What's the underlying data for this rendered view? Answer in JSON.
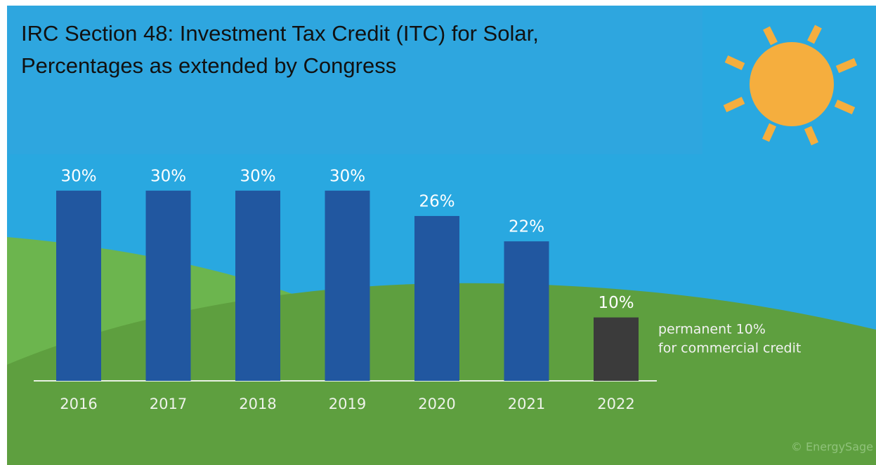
{
  "chart_data": {
    "type": "bar",
    "title": [
      "IRC Section 48: Investment Tax Credit (ITC) for Solar,",
      "Percentages as extended by Congress"
    ],
    "categories": [
      "2016",
      "2017",
      "2018",
      "2019",
      "2020",
      "2021",
      "2022"
    ],
    "values": [
      30,
      30,
      30,
      30,
      26,
      22,
      10
    ],
    "value_labels": [
      "30%",
      "30%",
      "30%",
      "30%",
      "26%",
      "22%",
      "10%"
    ],
    "colors": [
      "#2157a0",
      "#2157a0",
      "#2157a0",
      "#2157a0",
      "#2157a0",
      "#2157a0",
      "#3b3b3b"
    ],
    "annotation": [
      "permanent 10%",
      "for commercial credit"
    ],
    "credit": "© EnergySage"
  }
}
